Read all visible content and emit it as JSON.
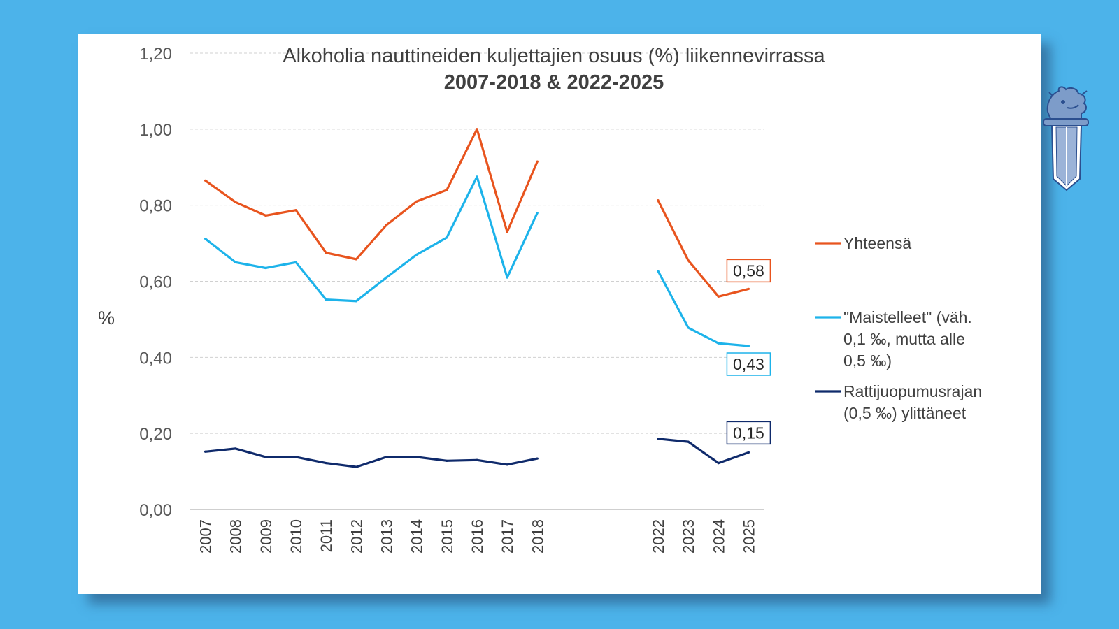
{
  "chart_data": {
    "type": "line",
    "title": "Alkoholia nauttineiden kuljettajien osuus (%) liikennevirrassa",
    "subtitle": "2007-2018 & 2022-2025",
    "ylabel": "%",
    "xlabel": "",
    "ylim": [
      0,
      1.2
    ],
    "yticks": [
      "0,00",
      "0,20",
      "0,40",
      "0,60",
      "0,80",
      "1,00",
      "1,20"
    ],
    "ytick_values": [
      0,
      0.2,
      0.4,
      0.6,
      0.8,
      1.0,
      1.2
    ],
    "grid": true,
    "legend_position": "right",
    "categories": [
      "2007",
      "2008",
      "2009",
      "2010",
      "2011",
      "2012",
      "2013",
      "2014",
      "2015",
      "2016",
      "2017",
      "2018",
      "",
      "",
      "",
      "2022",
      "2023",
      "2024",
      "2025"
    ],
    "segments": [
      [
        0,
        11
      ],
      [
        15,
        18
      ]
    ],
    "series": [
      {
        "name": "Yhteensä",
        "color": "#e8541e",
        "values": [
          0.865,
          0.808,
          0.773,
          0.787,
          0.675,
          0.658,
          0.748,
          0.81,
          0.84,
          1.0,
          0.73,
          0.915,
          null,
          null,
          null,
          0.813,
          0.655,
          0.56,
          0.58
        ],
        "end_label": "0,58"
      },
      {
        "name": "\"Maistelleet\" (väh. 0,1 ‰, mutta alle 0,5 ‰)",
        "color": "#1db3ea",
        "values": [
          0.712,
          0.65,
          0.635,
          0.65,
          0.552,
          0.548,
          0.61,
          0.67,
          0.715,
          0.875,
          0.61,
          0.78,
          null,
          null,
          null,
          0.627,
          0.478,
          0.437,
          0.43
        ],
        "end_label": "0,43"
      },
      {
        "name": "Rattijuopumusrajan (0,5 ‰) ylittäneet",
        "color": "#0f2a6b",
        "values": [
          0.152,
          0.16,
          0.138,
          0.138,
          0.122,
          0.112,
          0.138,
          0.138,
          0.128,
          0.13,
          0.118,
          0.134,
          null,
          null,
          null,
          0.186,
          0.178,
          0.122,
          0.15
        ],
        "end_label": "0,15"
      }
    ]
  },
  "legend": [
    {
      "lines": [
        "Yhteensä"
      ]
    },
    {
      "lines": [
        "\"Maistelleet\" (väh.",
        "0,1 ‰, mutta alle",
        "0,5 ‰)"
      ]
    },
    {
      "lines": [
        "Rattijuopumusrajan",
        "(0,5 ‰) ylittäneet"
      ]
    }
  ],
  "logo": {
    "icon": "police-emblem-icon"
  }
}
